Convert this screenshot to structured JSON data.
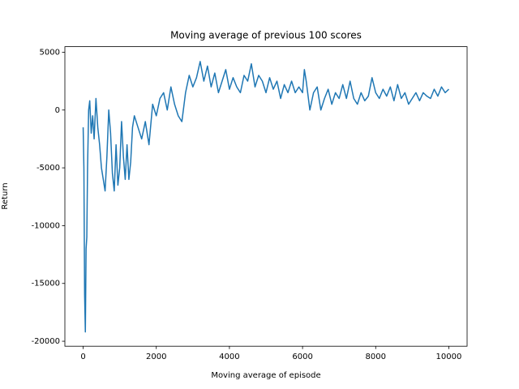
{
  "chart_data": {
    "type": "line",
    "title": "Moving average of previous 100 scores",
    "xlabel": "Moving average of episode",
    "ylabel": "Return",
    "x": [
      0,
      20,
      40,
      60,
      80,
      100,
      120,
      150,
      180,
      220,
      260,
      300,
      350,
      400,
      450,
      500,
      550,
      600,
      650,
      700,
      750,
      800,
      850,
      900,
      950,
      1000,
      1050,
      1100,
      1150,
      1200,
      1250,
      1300,
      1350,
      1400,
      1500,
      1600,
      1700,
      1800,
      1900,
      2000,
      2100,
      2200,
      2300,
      2400,
      2500,
      2600,
      2700,
      2800,
      2900,
      3000,
      3100,
      3200,
      3300,
      3400,
      3500,
      3600,
      3700,
      3800,
      3900,
      4000,
      4100,
      4200,
      4300,
      4400,
      4500,
      4600,
      4700,
      4800,
      4900,
      5000,
      5100,
      5200,
      5300,
      5400,
      5500,
      5600,
      5700,
      5800,
      5900,
      6000,
      6050,
      6100,
      6200,
      6300,
      6400,
      6500,
      6600,
      6700,
      6800,
      6900,
      7000,
      7100,
      7200,
      7300,
      7400,
      7500,
      7600,
      7700,
      7800,
      7900,
      8000,
      8100,
      8200,
      8300,
      8400,
      8500,
      8600,
      8700,
      8800,
      8900,
      9000,
      9100,
      9200,
      9300,
      9400,
      9500,
      9600,
      9700,
      9800,
      9900,
      10000
    ],
    "series": [
      {
        "color": "#1f77b4",
        "values": [
          -1500,
          -5000,
          -16000,
          -19200,
          -12000,
          -11000,
          -5000,
          0,
          800,
          -2000,
          -500,
          -2500,
          1000,
          -1500,
          -3000,
          -5000,
          -6000,
          -7000,
          -4000,
          0,
          -2000,
          -5500,
          -7000,
          -3000,
          -6500,
          -5000,
          -1000,
          -4000,
          -6000,
          -3000,
          -6000,
          -4500,
          -1500,
          -500,
          -1500,
          -2500,
          -1000,
          -3000,
          500,
          -500,
          1000,
          1500,
          0,
          2000,
          500,
          -500,
          -1000,
          1500,
          3000,
          2000,
          2800,
          4200,
          2500,
          3800,
          2000,
          3200,
          1500,
          2500,
          3500,
          1800,
          2800,
          2000,
          1500,
          3000,
          2500,
          4000,
          2000,
          3000,
          2500,
          1500,
          2800,
          1800,
          2500,
          1000,
          2200,
          1500,
          2500,
          1500,
          2000,
          1500,
          3500,
          2500,
          0,
          1500,
          2000,
          0,
          1000,
          1800,
          500,
          1500,
          1000,
          2200,
          1000,
          2500,
          1000,
          500,
          1500,
          800,
          1200,
          2800,
          1500,
          1000,
          1800,
          1200,
          2000,
          800,
          2200,
          1000,
          1500,
          500,
          1000,
          1500,
          800,
          1500,
          1200,
          1000,
          1800,
          1200,
          2000,
          1500,
          1800
        ]
      }
    ],
    "xlim": [
      -500,
      10500
    ],
    "ylim": [
      -20430,
      5480
    ],
    "xticks": [
      0,
      2000,
      4000,
      6000,
      8000,
      10000
    ],
    "yticks": [
      -20000,
      -15000,
      -10000,
      -5000,
      0,
      5000
    ]
  }
}
